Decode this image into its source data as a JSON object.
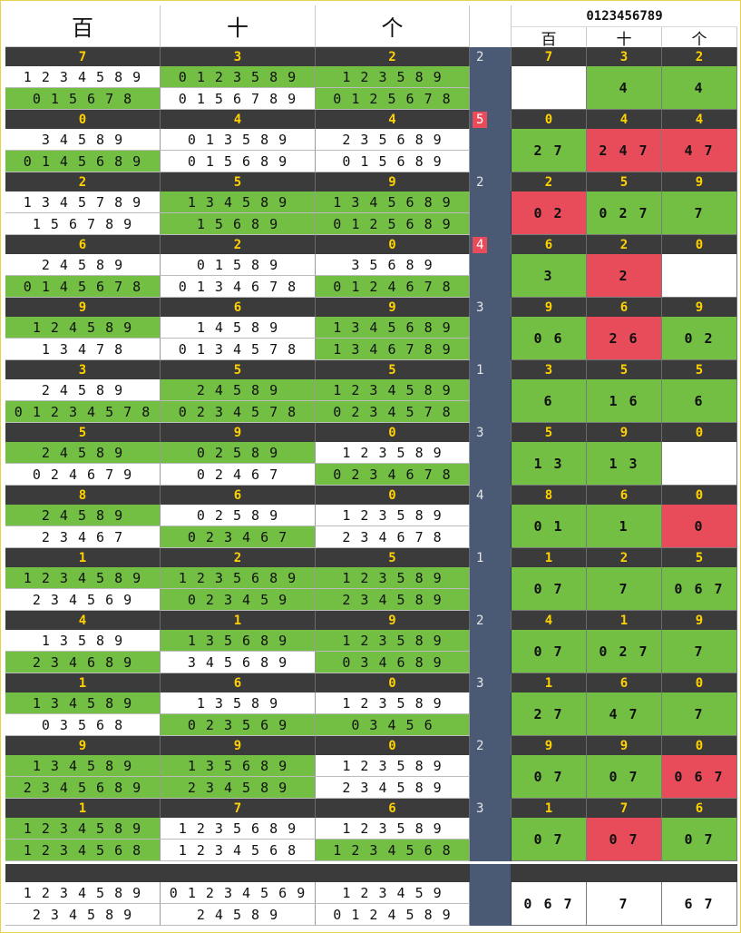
{
  "header": {
    "col_labels": [
      "百",
      "十",
      "个"
    ],
    "digits_title": "0123456789",
    "sub_labels": [
      "百",
      "十",
      "个"
    ]
  },
  "groups": [
    {
      "win": [
        "7",
        "3",
        "2"
      ],
      "count": "2",
      "count_red": false,
      "lines": [
        [
          "1 2 3 4 5 8 9",
          "0 1 5 6 7 8"
        ],
        [
          "0 1 2 3 5 8 9",
          "0 1 5 6 7 8 9"
        ],
        [
          "1 2 3 5 8 9",
          "0 1 2 5 6 7 8"
        ]
      ],
      "line_colors": [
        [
          "w",
          "g"
        ],
        [
          "g",
          "w"
        ],
        [
          "g",
          "g"
        ]
      ],
      "result": [
        "",
        "4",
        "4"
      ],
      "result_colors": [
        "w",
        "g",
        "g"
      ]
    },
    {
      "win": [
        "0",
        "4",
        "4"
      ],
      "count": "5",
      "count_red": true,
      "lines": [
        [
          "3 4 5 8 9",
          "0 1 4 5 6 8 9"
        ],
        [
          "0 1 3 5 8 9",
          "0 1 5 6 8 9"
        ],
        [
          "2 3 5 6 8 9",
          "0 1 5 6 8 9"
        ]
      ],
      "line_colors": [
        [
          "w",
          "g"
        ],
        [
          "w",
          "w"
        ],
        [
          "w",
          "w"
        ]
      ],
      "result": [
        "2 7",
        "2 4 7",
        "4 7"
      ],
      "result_colors": [
        "g",
        "r",
        "r"
      ]
    },
    {
      "win": [
        "2",
        "5",
        "9"
      ],
      "count": "2",
      "count_red": false,
      "lines": [
        [
          "1 3 4 5 7 8 9",
          "1 5 6 7 8 9"
        ],
        [
          "1 3 4 5 8 9",
          "1 5 6 8 9"
        ],
        [
          "1 3 4 5 6 8 9",
          "0 1 2 5 6 8 9"
        ]
      ],
      "line_colors": [
        [
          "w",
          "w"
        ],
        [
          "g",
          "g"
        ],
        [
          "g",
          "g"
        ]
      ],
      "result": [
        "0 2",
        "0 2 7",
        "7"
      ],
      "result_colors": [
        "r",
        "g",
        "g"
      ]
    },
    {
      "win": [
        "6",
        "2",
        "0"
      ],
      "count": "4",
      "count_red": true,
      "lines": [
        [
          "2 4 5 8 9",
          "0 1 4 5 6 7 8"
        ],
        [
          "0 1 5 8 9",
          "0 1 3 4 6 7 8"
        ],
        [
          "3 5 6 8 9",
          "0 1 2 4 6 7 8"
        ]
      ],
      "line_colors": [
        [
          "w",
          "g"
        ],
        [
          "w",
          "w"
        ],
        [
          "w",
          "g"
        ]
      ],
      "result": [
        "3",
        "2",
        ""
      ],
      "result_colors": [
        "g",
        "r",
        "w"
      ]
    },
    {
      "win": [
        "9",
        "6",
        "9"
      ],
      "count": "3",
      "count_red": false,
      "lines": [
        [
          "1 2 4 5 8 9",
          "1 3 4 7 8"
        ],
        [
          "1 4 5 8 9",
          "0 1 3 4 5 7 8"
        ],
        [
          "1 3 4 5 6 8 9",
          "1 3 4 6 7 8 9"
        ]
      ],
      "line_colors": [
        [
          "g",
          "w"
        ],
        [
          "w",
          "w"
        ],
        [
          "g",
          "g"
        ]
      ],
      "result": [
        "0 6",
        "2 6",
        "0 2"
      ],
      "result_colors": [
        "g",
        "r",
        "g"
      ]
    },
    {
      "win": [
        "3",
        "5",
        "5"
      ],
      "count": "1",
      "count_red": false,
      "lines": [
        [
          "2 4 5 8 9",
          "0 1 2 3 4 5 7 8"
        ],
        [
          "2 4 5 8 9",
          "0 2 3 4 5 7 8"
        ],
        [
          "1 2 3 4 5 8 9",
          "0 2 3 4 5 7 8"
        ]
      ],
      "line_colors": [
        [
          "w",
          "g"
        ],
        [
          "g",
          "g"
        ],
        [
          "g",
          "g"
        ]
      ],
      "result": [
        "6",
        "1 6",
        "6"
      ],
      "result_colors": [
        "g",
        "g",
        "g"
      ]
    },
    {
      "win": [
        "5",
        "9",
        "0"
      ],
      "count": "3",
      "count_red": false,
      "lines": [
        [
          "2 4 5 8 9",
          "0 2 4 6 7 9"
        ],
        [
          "0 2 5 8 9",
          "0 2 4 6 7"
        ],
        [
          "1 2 3 5 8 9",
          "0 2 3 4 6 7 8"
        ]
      ],
      "line_colors": [
        [
          "g",
          "w"
        ],
        [
          "g",
          "w"
        ],
        [
          "w",
          "g"
        ]
      ],
      "result": [
        "1 3",
        "1 3",
        ""
      ],
      "result_colors": [
        "g",
        "g",
        "w"
      ]
    },
    {
      "win": [
        "8",
        "6",
        "0"
      ],
      "count": "4",
      "count_red": false,
      "lines": [
        [
          "2 4 5 8 9",
          "2 3 4 6 7"
        ],
        [
          "0 2 5 8 9",
          "0 2 3 4 6 7"
        ],
        [
          "1 2 3 5 8 9",
          "2 3 4 6 7 8"
        ]
      ],
      "line_colors": [
        [
          "g",
          "w"
        ],
        [
          "w",
          "g"
        ],
        [
          "w",
          "w"
        ]
      ],
      "result": [
        "0 1",
        "1",
        "0"
      ],
      "result_colors": [
        "g",
        "g",
        "r"
      ]
    },
    {
      "win": [
        "1",
        "2",
        "5"
      ],
      "count": "1",
      "count_red": false,
      "lines": [
        [
          "1 2 3 4 5 8 9",
          "2 3 4 5 6 9"
        ],
        [
          "1 2 3 5 6 8 9",
          "0 2 3 4 5 9"
        ],
        [
          "1 2 3 5 8 9",
          "2 3 4 5 8 9"
        ]
      ],
      "line_colors": [
        [
          "g",
          "w"
        ],
        [
          "g",
          "g"
        ],
        [
          "g",
          "g"
        ]
      ],
      "result": [
        "0 7",
        "7",
        "0 6 7"
      ],
      "result_colors": [
        "g",
        "g",
        "g"
      ]
    },
    {
      "win": [
        "4",
        "1",
        "9"
      ],
      "count": "2",
      "count_red": false,
      "lines": [
        [
          "1 3 5 8 9",
          "2 3 4 6 8 9"
        ],
        [
          "1 3 5 6 8 9",
          "3 4 5 6 8 9"
        ],
        [
          "1 2 3 5 8 9",
          "0 3 4 6 8 9"
        ]
      ],
      "line_colors": [
        [
          "w",
          "g"
        ],
        [
          "g",
          "w"
        ],
        [
          "g",
          "g"
        ]
      ],
      "result": [
        "0 7",
        "0 2 7",
        "7"
      ],
      "result_colors": [
        "g",
        "g",
        "g"
      ]
    },
    {
      "win": [
        "1",
        "6",
        "0"
      ],
      "count": "3",
      "count_red": false,
      "lines": [
        [
          "1 3 4 5 8 9",
          "0 3 5 6 8"
        ],
        [
          "1 3 5 8 9",
          "0 2 3 5 6 9"
        ],
        [
          "1 2 3 5 8 9",
          "0 3 4 5 6"
        ]
      ],
      "line_colors": [
        [
          "g",
          "w"
        ],
        [
          "w",
          "g"
        ],
        [
          "w",
          "g"
        ]
      ],
      "result": [
        "2 7",
        "4 7",
        "7"
      ],
      "result_colors": [
        "g",
        "g",
        "g"
      ]
    },
    {
      "win": [
        "9",
        "9",
        "0"
      ],
      "count": "2",
      "count_red": false,
      "lines": [
        [
          "1 3 4 5 8 9",
          "2 3 4 5 6 8 9"
        ],
        [
          "1 3 5 6 8 9",
          "2 3 4 5 8 9"
        ],
        [
          "1 2 3 5 8 9",
          "2 3 4 5 8 9"
        ]
      ],
      "line_colors": [
        [
          "g",
          "g"
        ],
        [
          "g",
          "g"
        ],
        [
          "w",
          "w"
        ]
      ],
      "result": [
        "0 7",
        "0 7",
        "0 6 7"
      ],
      "result_colors": [
        "g",
        "g",
        "r"
      ]
    },
    {
      "win": [
        "1",
        "7",
        "6"
      ],
      "count": "3",
      "count_red": false,
      "lines": [
        [
          "1 2 3 4 5 8 9",
          "1 2 3 4 5 6 8"
        ],
        [
          "1 2 3 5 6 8 9",
          "1 2 3 4 5 6 8"
        ],
        [
          "1 2 3 5 8 9",
          "1 2 3 4 5 6 8"
        ]
      ],
      "line_colors": [
        [
          "g",
          "g"
        ],
        [
          "w",
          "w"
        ],
        [
          "w",
          "g"
        ]
      ],
      "result": [
        "0 7",
        "0 7",
        "0 7"
      ],
      "result_colors": [
        "g",
        "r",
        "g"
      ]
    }
  ],
  "final": {
    "lines": [
      [
        "1 2 3 4 5 8 9",
        "2 3 4 5 8 9"
      ],
      [
        "0 1 2 3 4 5 6 9",
        "2 4 5 8 9"
      ],
      [
        "1 2 3 4 5 9",
        "0 1 2 4 5 8 9"
      ]
    ],
    "result": [
      "0 6 7",
      "7",
      "6 7"
    ]
  },
  "colors": {
    "green": "#72bf44",
    "red": "#e84c5a",
    "navy": "#4a5a74",
    "dark": "#3b3b3b",
    "gold": "#ffd200"
  }
}
